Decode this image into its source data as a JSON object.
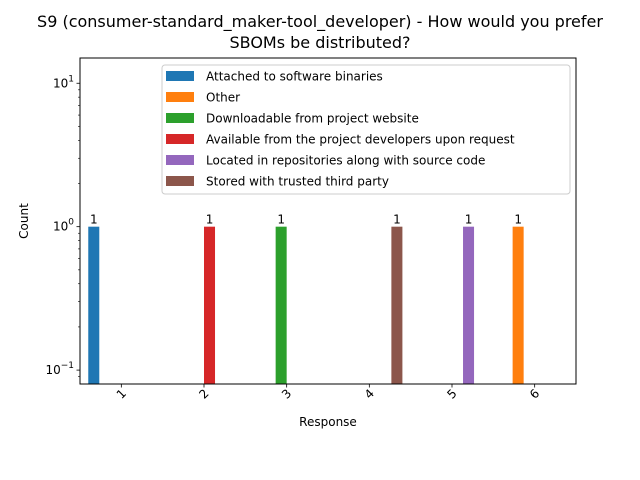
{
  "chart_data": {
    "type": "bar",
    "title_lines": [
      "S9 (consumer-standard_maker-tool_developer) - How would you prefer",
      "SBOMs be distributed?"
    ],
    "xlabel": "Response",
    "ylabel": "Count",
    "yscale": "log",
    "ylim": [
      0.08,
      15
    ],
    "y_ticks": [
      {
        "value": 0.1,
        "base": "10",
        "exp": "−1"
      },
      {
        "value": 1,
        "base": "10",
        "exp": "0"
      },
      {
        "value": 10,
        "base": "10",
        "exp": "1"
      }
    ],
    "categories": [
      "1",
      "2",
      "3",
      "4",
      "5",
      "6"
    ],
    "x_tick_rotation": 45,
    "legend_position": "upper-center",
    "series": [
      {
        "name": "Attached to software binaries",
        "color": "#1f77b4",
        "values": [
          1,
          0,
          0,
          0,
          0,
          0
        ]
      },
      {
        "name": "Other",
        "color": "#ff7f0e",
        "values": [
          0,
          0,
          0,
          0,
          0,
          1
        ]
      },
      {
        "name": "Downloadable from project website",
        "color": "#2ca02c",
        "values": [
          0,
          0,
          1,
          0,
          0,
          0
        ]
      },
      {
        "name": "Available from the project developers upon request",
        "color": "#d62728",
        "values": [
          0,
          1,
          0,
          0,
          0,
          0
        ]
      },
      {
        "name": "Located in repositories along with source code",
        "color": "#9467bd",
        "values": [
          0,
          0,
          0,
          0,
          1,
          0
        ]
      },
      {
        "name": "Stored with trusted third party",
        "color": "#8c564b",
        "values": [
          0,
          0,
          0,
          1,
          0,
          0
        ]
      }
    ],
    "data_labels": [
      "1",
      "1",
      "1",
      "1",
      "1",
      "1"
    ],
    "grid": false
  }
}
